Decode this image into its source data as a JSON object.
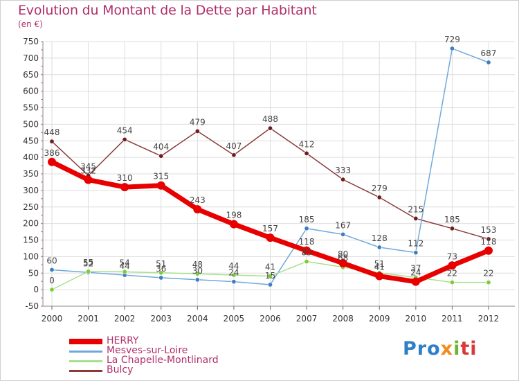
{
  "chart_data": {
    "type": "line",
    "title": "Evolution du Montant de la Dette par Habitant",
    "subtitle": "(en €)",
    "x": [
      "2000",
      "2001",
      "2002",
      "2003",
      "2004",
      "2005",
      "2006",
      "2007",
      "2008",
      "2009",
      "2010",
      "2011",
      "2012"
    ],
    "ylim": [
      -50,
      750
    ],
    "yticks": [
      -50,
      0,
      50,
      100,
      150,
      200,
      250,
      300,
      350,
      400,
      450,
      500,
      550,
      600,
      650,
      700,
      750
    ],
    "grid": true,
    "legend_position": "bottom-left",
    "series": [
      {
        "name": "HERRY",
        "color": "#e80000",
        "width": 7,
        "values": [
          386,
          332,
          310,
          315,
          243,
          198,
          157,
          118,
          80,
          41,
          24,
          73,
          118
        ],
        "labels": [
          "386",
          "332",
          "310",
          "315",
          "243",
          "198",
          "157",
          "118",
          "80",
          "41",
          "24",
          "73",
          "118"
        ]
      },
      {
        "name": "Mesves-sur-Loire",
        "color": "#6fa8dc",
        "marker": "#3d7fc1",
        "width": 1.5,
        "values": [
          60,
          52,
          44,
          36,
          30,
          24,
          15,
          185,
          167,
          128,
          112,
          729,
          687
        ],
        "labels": [
          "60",
          "52",
          "44",
          "36",
          "30",
          "24",
          "15",
          "185",
          "167",
          "128",
          "112",
          "729",
          "687"
        ]
      },
      {
        "name": "La Chapelle-Montlinard",
        "color": "#a6e08a",
        "marker": "#7ccc3a",
        "width": 1.5,
        "values": [
          0,
          55,
          54,
          51,
          48,
          44,
          41,
          85,
          68,
          51,
          37,
          22,
          22
        ],
        "labels": [
          "0",
          "55",
          "54",
          "51",
          "48",
          "44",
          "41",
          "85",
          "68",
          "51",
          "37",
          "22",
          "22"
        ]
      },
      {
        "name": "Bulcy",
        "color": "#8b3a3a",
        "marker": "#6e1e1e",
        "width": 1.5,
        "values": [
          448,
          345,
          454,
          404,
          479,
          407,
          488,
          412,
          333,
          279,
          215,
          185,
          153
        ],
        "labels": [
          "448",
          "345",
          "454",
          "404",
          "479",
          "407",
          "488",
          "412",
          "333",
          "279",
          "215",
          "185",
          "153"
        ]
      }
    ]
  },
  "logo": {
    "p1": "Pro",
    "p2": "x",
    "p3": "i",
    "p4": "ti"
  }
}
